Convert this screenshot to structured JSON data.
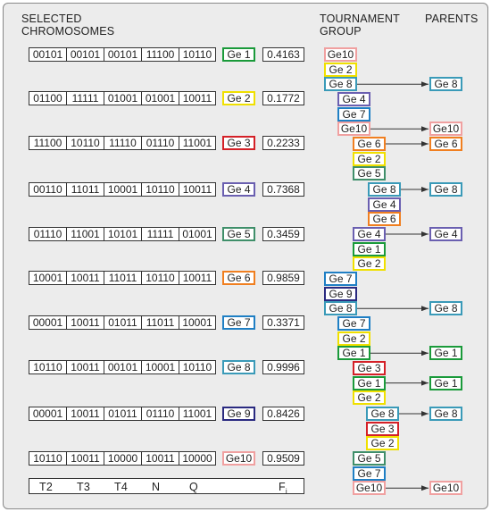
{
  "header": {
    "selected": "SELECTED CHROMOSOMES",
    "tournament": "TOURNAMENT GROUP",
    "parents": "PARENTS"
  },
  "chromosomes": [
    {
      "genes": [
        "00101",
        "00101",
        "00101",
        "11100",
        "10110"
      ],
      "label": "Ge 1",
      "fitness": "0.4163",
      "color": "#1a9a3a"
    },
    {
      "genes": [
        "01100",
        "11111",
        "01001",
        "01001",
        "10011"
      ],
      "label": "Ge 2",
      "fitness": "0.1772",
      "color": "#f0e000"
    },
    {
      "genes": [
        "11100",
        "10110",
        "11110",
        "01110",
        "11001"
      ],
      "label": "Ge 3",
      "fitness": "0.2233",
      "color": "#d42027"
    },
    {
      "genes": [
        "00110",
        "11011",
        "10001",
        "10110",
        "10011"
      ],
      "label": "Ge 4",
      "fitness": "0.7368",
      "color": "#6a5fb0"
    },
    {
      "genes": [
        "01110",
        "11001",
        "10101",
        "11111",
        "01001"
      ],
      "label": "Ge 5",
      "fitness": "0.3459",
      "color": "#3f8f6a"
    },
    {
      "genes": [
        "10001",
        "10011",
        "11011",
        "10110",
        "10011"
      ],
      "label": "Ge 6",
      "fitness": "0.9859",
      "color": "#f07f20"
    },
    {
      "genes": [
        "00001",
        "10011",
        "01011",
        "11011",
        "10001"
      ],
      "label": "Ge 7",
      "fitness": "0.3371",
      "color": "#1f7fc4"
    },
    {
      "genes": [
        "10110",
        "10011",
        "00101",
        "10001",
        "10110"
      ],
      "label": "Ge 8",
      "fitness": "0.9996",
      "color": "#3a9ab8"
    },
    {
      "genes": [
        "00001",
        "10011",
        "01011",
        "01110",
        "11001"
      ],
      "label": "Ge 9",
      "fitness": "0.8426",
      "color": "#2a2a80"
    },
    {
      "genes": [
        "10110",
        "10011",
        "10000",
        "10011",
        "10000"
      ],
      "label": "Ge10",
      "fitness": "0.9509",
      "color": "#f0a0a0"
    }
  ],
  "footer": {
    "columns": [
      "T2",
      "T3",
      "T4",
      "N",
      "Q"
    ],
    "fitness": {
      "main": "F",
      "sub": "i"
    }
  },
  "tournament": [
    {
      "members": [
        "Ge10",
        "Ge 2",
        "Ge 8"
      ],
      "parent": "Ge 8"
    },
    {
      "members": [
        "Ge 4",
        "Ge 7",
        "Ge10"
      ],
      "parent": "Ge10"
    },
    {
      "members": [
        "Ge 6",
        "Ge 2",
        "Ge 5"
      ],
      "parent": "Ge 6"
    },
    {
      "members": [
        "Ge 8",
        "Ge 4",
        "Ge 6"
      ],
      "parent": "Ge 8"
    },
    {
      "members": [
        "Ge 4",
        "Ge 1",
        "Ge 2"
      ],
      "parent": "Ge 4"
    },
    {
      "members": [
        "Ge 7",
        "Ge 9",
        "Ge 8"
      ],
      "parent": "Ge 8"
    },
    {
      "members": [
        "Ge 7",
        "Ge 2",
        "Ge 1"
      ],
      "parent": "Ge 1"
    },
    {
      "members": [
        "Ge 3",
        "Ge 1",
        "Ge 2"
      ],
      "parent": "Ge 1"
    },
    {
      "members": [
        "Ge 8",
        "Ge 3",
        "Ge 2"
      ],
      "parent": "Ge 8"
    },
    {
      "members": [
        "Ge 5",
        "Ge 7",
        "Ge10"
      ],
      "parent": "Ge10"
    }
  ]
}
